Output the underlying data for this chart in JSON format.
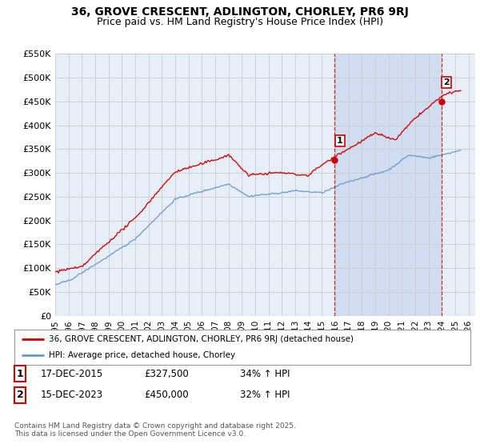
{
  "title": "36, GROVE CRESCENT, ADLINGTON, CHORLEY, PR6 9RJ",
  "subtitle": "Price paid vs. HM Land Registry's House Price Index (HPI)",
  "ylim": [
    0,
    550000
  ],
  "yticks": [
    0,
    50000,
    100000,
    150000,
    200000,
    250000,
    300000,
    350000,
    400000,
    450000,
    500000,
    550000
  ],
  "ytick_labels": [
    "£0",
    "£50K",
    "£100K",
    "£150K",
    "£200K",
    "£250K",
    "£300K",
    "£350K",
    "£400K",
    "£450K",
    "£500K",
    "£550K"
  ],
  "xlim_start": 1995.0,
  "xlim_end": 2026.5,
  "grid_color": "#cccccc",
  "plot_bg": "#e8eef8",
  "highlight_bg": "#d0dcf0",
  "fig_bg": "#ffffff",
  "red_color": "#cc0000",
  "blue_color": "#6699cc",
  "marker1_x": 2015.96,
  "marker1_y": 327500,
  "marker2_x": 2023.96,
  "marker2_y": 450000,
  "legend_label_red": "36, GROVE CRESCENT, ADLINGTON, CHORLEY, PR6 9RJ (detached house)",
  "legend_label_blue": "HPI: Average price, detached house, Chorley",
  "table_rows": [
    {
      "num": "1",
      "date": "17-DEC-2015",
      "price": "£327,500",
      "hpi": "34% ↑ HPI"
    },
    {
      "num": "2",
      "date": "15-DEC-2023",
      "price": "£450,000",
      "hpi": "32% ↑ HPI"
    }
  ],
  "footer": "Contains HM Land Registry data © Crown copyright and database right 2025.\nThis data is licensed under the Open Government Licence v3.0.",
  "title_fontsize": 10,
  "subtitle_fontsize": 9
}
